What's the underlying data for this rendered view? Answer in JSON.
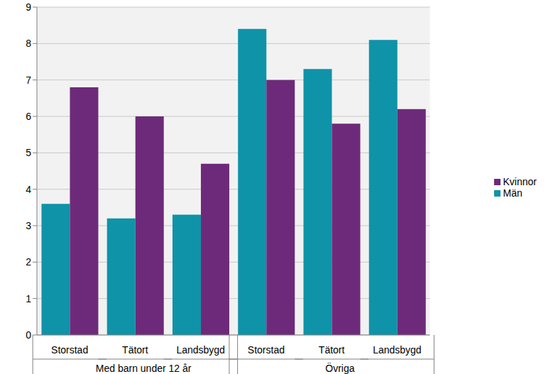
{
  "chart_data": {
    "type": "bar",
    "groups": [
      {
        "name": "Med barn under 12 år",
        "categories": [
          "Storstad",
          "Tätort",
          "Landsbygd"
        ]
      },
      {
        "name": "Övriga",
        "categories": [
          "Storstad",
          "Tätort",
          "Landsbygd"
        ]
      }
    ],
    "series": [
      {
        "name": "Män",
        "color": "#0f93a8",
        "values": [
          3.6,
          3.2,
          3.3,
          8.4,
          7.3,
          8.1
        ]
      },
      {
        "name": "Kvinnor",
        "color": "#6e2a7a",
        "values": [
          6.8,
          6.0,
          4.7,
          7.0,
          5.8,
          6.2
        ]
      }
    ],
    "ylim": [
      0,
      9
    ],
    "yticks": [
      0,
      1,
      2,
      3,
      4,
      5,
      6,
      7,
      8,
      9
    ],
    "grid": true,
    "legend": "right"
  }
}
